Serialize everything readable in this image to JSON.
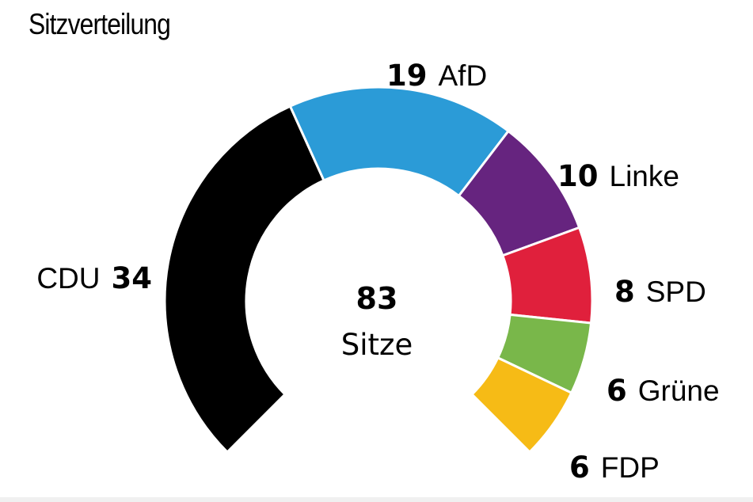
{
  "title": "Sitzverteilung",
  "total": {
    "value": "83",
    "label": "Sitze"
  },
  "chart_data": {
    "type": "pie",
    "style": "semicircle-donut",
    "title": "Sitzverteilung",
    "total_seats": 83,
    "series": [
      {
        "name": "CDU",
        "value": 34,
        "color": "#000000"
      },
      {
        "name": "AfD",
        "value": 19,
        "color": "#2b9bd7"
      },
      {
        "name": "Linke",
        "value": 10,
        "color": "#66247f"
      },
      {
        "name": "SPD",
        "value": 8,
        "color": "#e0203c"
      },
      {
        "name": "Grüne",
        "value": 6,
        "color": "#79b74a"
      },
      {
        "name": "FDP",
        "value": 6,
        "color": "#f6bb16"
      }
    ]
  }
}
